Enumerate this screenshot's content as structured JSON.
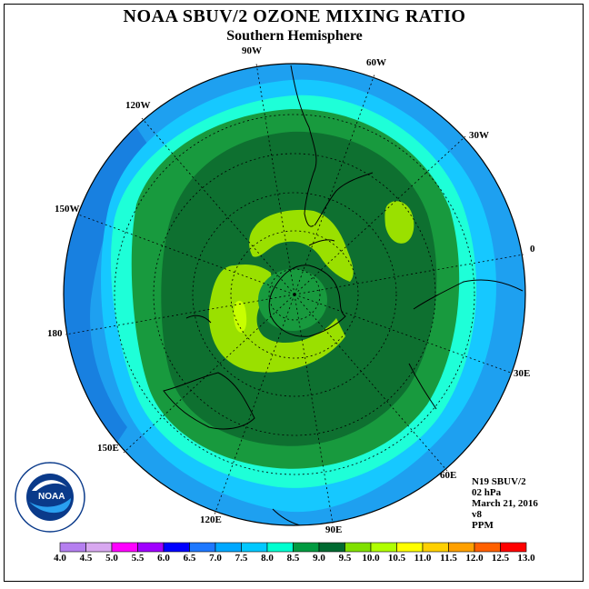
{
  "header": {
    "title": "NOAA SBUV/2 OZONE MIXING RATIO",
    "subtitle": "Southern Hemisphere"
  },
  "longitude_labels": {
    "w90": "90W",
    "w60": "60W",
    "w30": "30W",
    "zero": "0",
    "e30": "30E",
    "e60": "60E",
    "e90": "90E",
    "e120": "120E",
    "e150": "150E",
    "l180": "180",
    "w150": "150W",
    "w120": "120W"
  },
  "info": {
    "instrument": "N19 SBUV/2",
    "level": "02 hPa",
    "date": "March 21, 2016",
    "version": "v8",
    "units": "PPM"
  },
  "logo": {
    "text": "NOAA"
  },
  "colorbar": {
    "labels": [
      "4.0",
      "4.5",
      "5.0",
      "5.5",
      "6.0",
      "6.5",
      "7.0",
      "7.5",
      "8.0",
      "8.5",
      "9.0",
      "9.5",
      "10.0",
      "10.5",
      "11.0",
      "11.5",
      "12.0",
      "12.5",
      "13.0"
    ],
    "colors": [
      "#b57ff0",
      "#d8a8f0",
      "#ff00ff",
      "#a000ff",
      "#0000ff",
      "#1e78ff",
      "#00a8ff",
      "#00c8ff",
      "#00ffd0",
      "#009a40",
      "#006a30",
      "#80e000",
      "#b0ff00",
      "#ffff00",
      "#ffd000",
      "#ffa000",
      "#ff6000",
      "#ff0000",
      "#8b5a2b"
    ]
  },
  "map_colors": {
    "band_7_0": "#1ea0f0",
    "band_7_5": "#16c8ff",
    "band_8_0": "#1effd8",
    "band_8_5": "#189a3e",
    "band_9_0": "#0e7030",
    "band_9_5": "#9ae000",
    "band_10_0": "#c8ff00"
  }
}
